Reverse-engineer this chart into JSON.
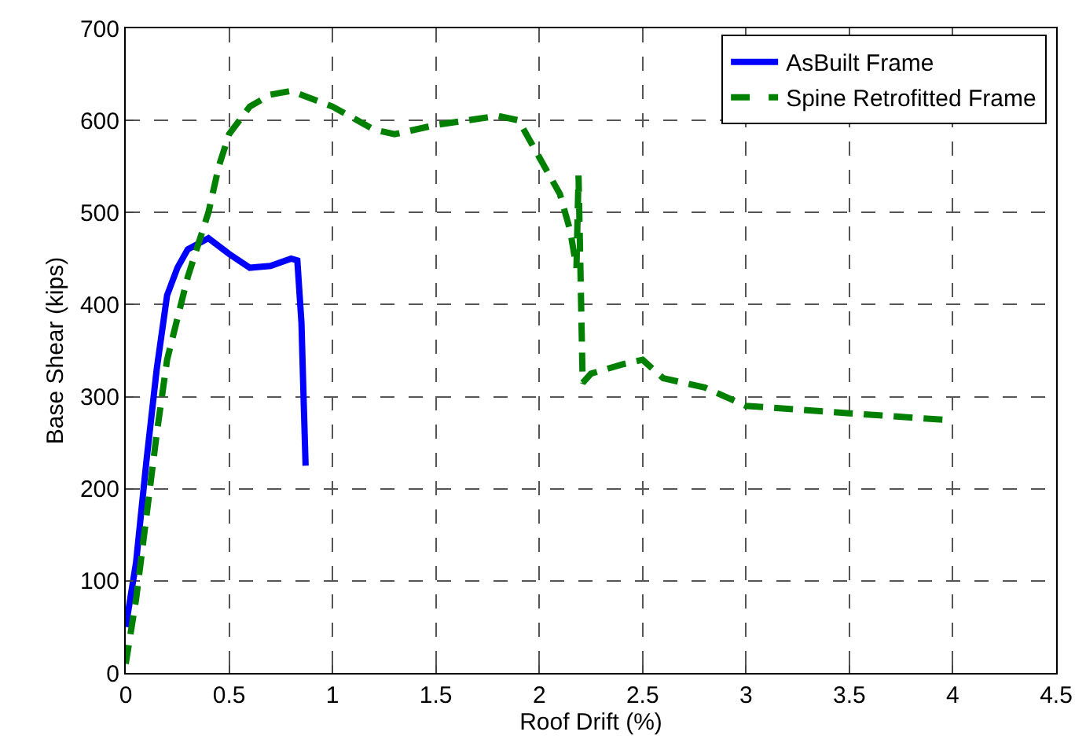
{
  "chart_data": {
    "type": "line",
    "xlabel": "Roof Drift (%)",
    "ylabel": "Base Shear (kips)",
    "xlim": [
      0,
      4.5
    ],
    "xticks": [
      0,
      0.5,
      1,
      1.5,
      2,
      2.5,
      3,
      3.5,
      4,
      4.5
    ],
    "ylim": [
      0,
      700
    ],
    "yticks": [
      0,
      100,
      200,
      300,
      400,
      500,
      600,
      700
    ],
    "grid": true,
    "legend": "top right",
    "marker": "none",
    "series": [
      {
        "name": "AsBuilt Frame",
        "color": "#0000ff",
        "line_style": "solid",
        "x": [
          0,
          0.05,
          0.1,
          0.15,
          0.2,
          0.25,
          0.3,
          0.4,
          0.5,
          0.6,
          0.7,
          0.8,
          0.83,
          0.85,
          0.86,
          0.87
        ],
        "values": [
          50,
          120,
          230,
          330,
          410,
          440,
          460,
          472,
          455,
          440,
          442,
          450,
          448,
          380,
          300,
          225
        ]
      },
      {
        "name": "Spine Retrofitted Frame",
        "color": "#008000",
        "line_style": "dashed",
        "x": [
          0,
          0.05,
          0.1,
          0.15,
          0.2,
          0.3,
          0.4,
          0.45,
          0.5,
          0.6,
          0.7,
          0.8,
          1.0,
          1.2,
          1.3,
          1.5,
          1.8,
          1.9,
          2.0,
          2.1,
          2.15,
          2.18,
          2.19,
          2.2,
          2.21,
          2.25,
          2.4,
          2.5,
          2.6,
          2.8,
          3.0,
          3.5,
          3.95
        ],
        "values": [
          10,
          80,
          170,
          260,
          340,
          430,
          500,
          550,
          585,
          615,
          628,
          632,
          615,
          590,
          585,
          595,
          605,
          600,
          560,
          520,
          480,
          440,
          540,
          430,
          315,
          325,
          335,
          340,
          320,
          310,
          290,
          282,
          275
        ]
      }
    ]
  }
}
